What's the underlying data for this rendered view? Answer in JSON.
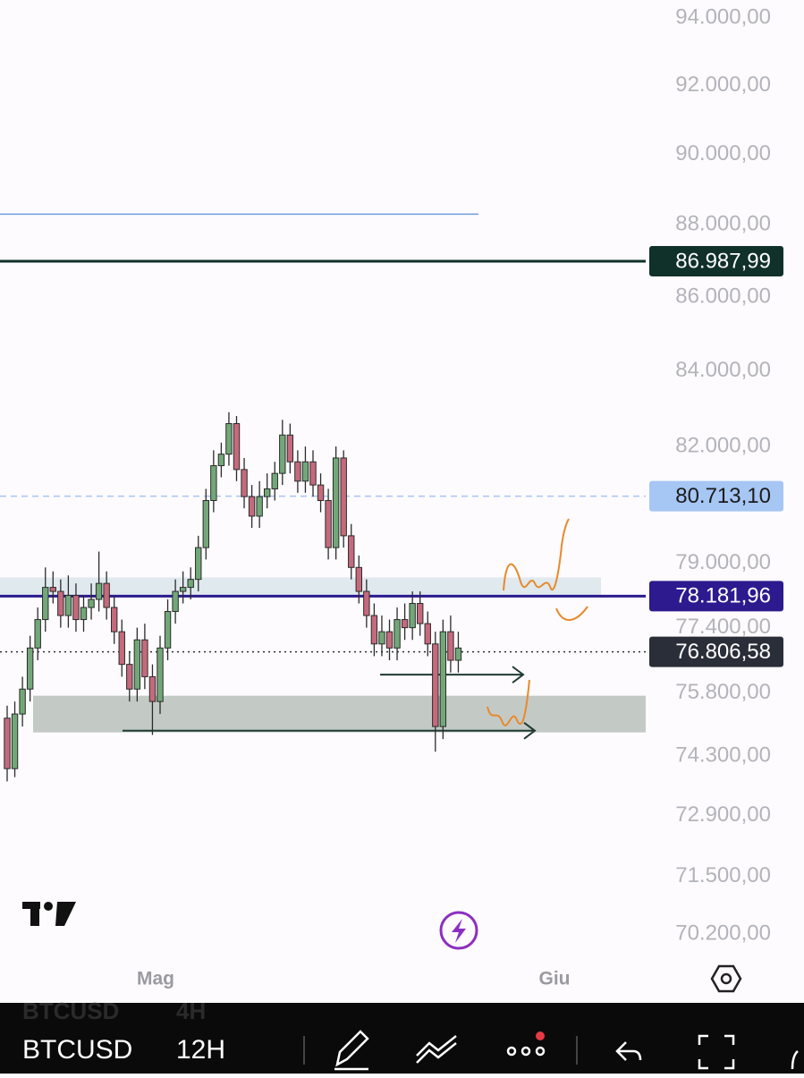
{
  "chart_data": {
    "type": "candlestick",
    "symbol": "BTCUSD",
    "interval": "12H",
    "prev_symbol": "BTCUSD",
    "prev_interval": "4H",
    "log_scale": true,
    "ylim": [
      69585,
      94537
    ],
    "yticks": [
      {
        "value": 94000,
        "label": "94.000,00"
      },
      {
        "value": 92000,
        "label": "92.000,00"
      },
      {
        "value": 90000,
        "label": "90.000,00"
      },
      {
        "value": 88000,
        "label": "88.000,00"
      },
      {
        "value": 86000,
        "label": "86.000,00"
      },
      {
        "value": 84000,
        "label": "84.000,00"
      },
      {
        "value": 82000,
        "label": "82.000,00"
      },
      {
        "value": 79000,
        "label": "79.000,00"
      },
      {
        "value": 77400,
        "label": "77.400,00"
      },
      {
        "value": 75800,
        "label": "75.800,00"
      },
      {
        "value": 74300,
        "label": "74.300,00"
      },
      {
        "value": 72900,
        "label": "72.900,00"
      },
      {
        "value": 71500,
        "label": "71.500,00"
      },
      {
        "value": 70200,
        "label": "70.200,00"
      }
    ],
    "x_labels": [
      "Mag",
      "Giu"
    ],
    "up_color": "#72a878",
    "down_color": "#c56a7c",
    "open": [
      75200,
      74000,
      75300,
      75900,
      76900,
      77600,
      78400,
      78300,
      77700,
      78200,
      77600,
      77900,
      78100,
      78500,
      77900,
      77300,
      76500,
      75900,
      77100,
      76200,
      75600,
      76900,
      77800,
      78300,
      78400,
      78600,
      79400,
      80600,
      81500,
      81800,
      82600,
      81400,
      80700,
      80200,
      80700,
      80900,
      81300,
      82300,
      81600,
      81100,
      81600,
      81000,
      80600,
      79400,
      81700,
      79700,
      78900,
      78300,
      77700,
      77000,
      77300,
      76900,
      77600,
      77400,
      78000,
      77500,
      77000,
      75000,
      77300,
      76600
    ],
    "high": [
      75500,
      75600,
      76200,
      77200,
      77900,
      78900,
      78800,
      78600,
      78700,
      78500,
      78200,
      78500,
      79300,
      78800,
      78200,
      77600,
      76800,
      77400,
      77500,
      76500,
      77200,
      78100,
      78600,
      78800,
      78900,
      79700,
      80900,
      81900,
      82100,
      82900,
      82800,
      81700,
      81000,
      81100,
      81300,
      81600,
      82700,
      82600,
      81900,
      82000,
      81900,
      81300,
      80900,
      82000,
      81900,
      80000,
      79200,
      78600,
      78000,
      77700,
      77600,
      77900,
      78000,
      78300,
      78300,
      77800,
      77300,
      77600,
      77700,
      77300
    ],
    "low": [
      73700,
      73800,
      75000,
      75600,
      76600,
      77300,
      78000,
      77400,
      77400,
      77300,
      77300,
      77600,
      77800,
      77600,
      77000,
      76200,
      75600,
      75600,
      75900,
      74800,
      75300,
      76600,
      77500,
      78000,
      78100,
      78300,
      79100,
      80300,
      81200,
      81500,
      81100,
      80400,
      79900,
      79900,
      80400,
      80600,
      81000,
      81300,
      80800,
      80800,
      80700,
      80300,
      79100,
      79100,
      79400,
      78600,
      78000,
      77400,
      76700,
      76700,
      76600,
      76600,
      77100,
      77100,
      77200,
      76700,
      74400,
      74700,
      76300,
      76300
    ],
    "close": [
      74000,
      75300,
      75900,
      76900,
      77600,
      78400,
      78300,
      77700,
      78200,
      77600,
      77900,
      78100,
      78500,
      77900,
      77300,
      76500,
      75900,
      77100,
      76200,
      75600,
      76900,
      77800,
      78300,
      78400,
      78600,
      79400,
      80600,
      81500,
      81800,
      82600,
      81400,
      80700,
      80200,
      80700,
      80900,
      81300,
      82300,
      81600,
      81100,
      81600,
      81000,
      80600,
      79400,
      81700,
      79700,
      78900,
      78300,
      77700,
      77000,
      77300,
      76900,
      77600,
      77400,
      78000,
      77500,
      77000,
      75000,
      77300,
      76600,
      76900
    ],
    "zones": [
      {
        "from": 78180,
        "to": 78650,
        "color": "#dfe9ee"
      },
      {
        "from": 74860,
        "to": 75740,
        "color": "#c3cac6"
      }
    ],
    "arrows": [
      {
        "price": 76250
      },
      {
        "price": 74900
      }
    ],
    "price_lines": [
      {
        "value": 88300,
        "color": "#6e9be0",
        "style": "thin"
      },
      {
        "value": 86987.99,
        "label": "86.987,99",
        "color": "#10302a",
        "text_color": "#ffffff",
        "style": "bold"
      },
      {
        "value": 80713.1,
        "label": "80.713,10",
        "color": "#a6c6f4",
        "text_color": "#1c1c1c",
        "style": "dashed"
      },
      {
        "value": 78181.96,
        "label": "78.181,96",
        "color": "#2c1a8e",
        "text_color": "#ffffff",
        "style": "bold"
      },
      {
        "value": 76806.58,
        "label": "76.806,58",
        "color": "#2a2e39",
        "text_color": "#ffffff",
        "style": "dotted"
      }
    ]
  }
}
